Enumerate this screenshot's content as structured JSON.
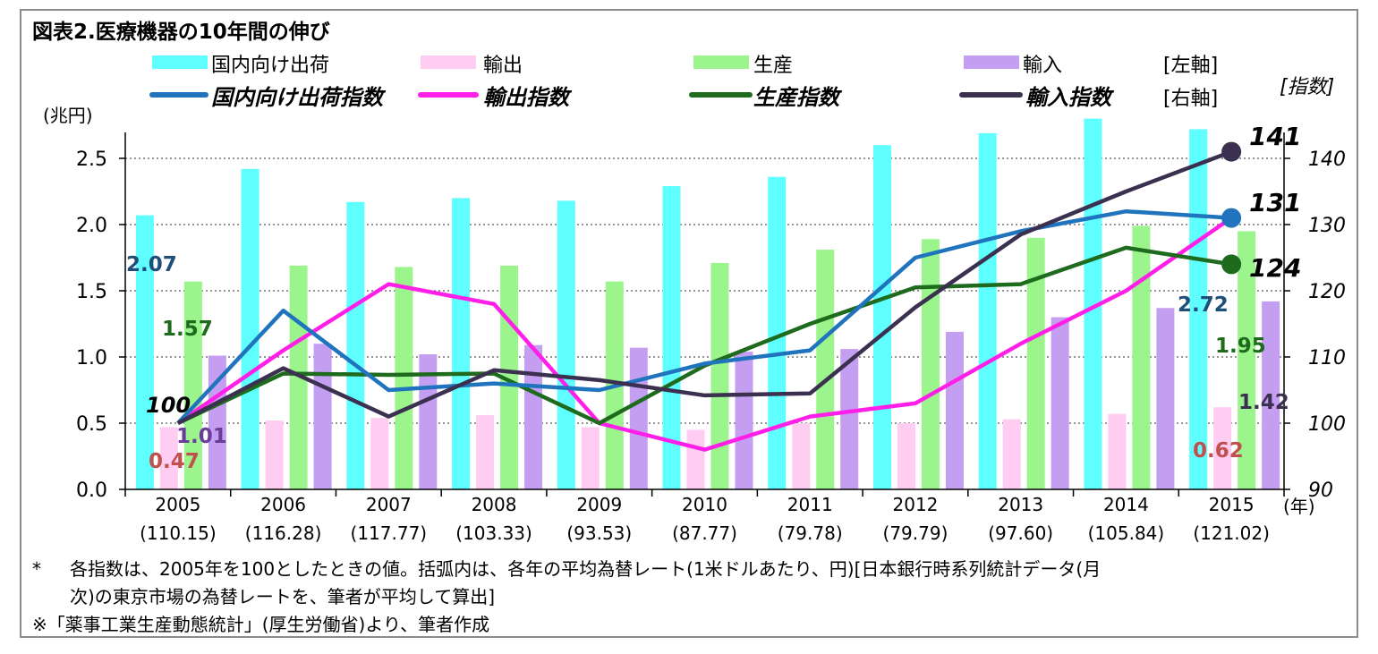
{
  "title": "図表2.医療機器の10年間の伸び",
  "notes": {
    "note1_mark": "*",
    "note1": "各指数は、2005年を100としたときの値。括弧内は、各年の平均為替レート(1米ドルあたり、円)[日本銀行時系列統計データ(月",
    "note2": "次)の東京市場の為替レートを、筆者が平均して算出]",
    "note3": "※「薬事工業生産動態統計」(厚生労働省)より、筆者作成"
  },
  "colors": {
    "domestic_bar": "#5fffff",
    "export_bar": "#ffccf2",
    "production_bar": "#9cf58c",
    "import_bar": "#c49ef0",
    "domestic_line": "#1f74bd",
    "export_line": "#ff1fe8",
    "production_line": "#1e6b1e",
    "import_line": "#3b3050"
  },
  "chart_data": {
    "type": "bar",
    "categories": [
      "2005",
      "2006",
      "2007",
      "2008",
      "2009",
      "2010",
      "2011",
      "2012",
      "2013",
      "2014",
      "2015"
    ],
    "exchange_rates": [
      "(110.15)",
      "(116.28)",
      "(117.77)",
      "(103.33)",
      "(93.53)",
      "(87.77)",
      "(79.78)",
      "(79.79)",
      "(97.60)",
      "(105.84)",
      "(121.02)"
    ],
    "x_unit": "(年)",
    "left_axis": {
      "label": "(兆円)",
      "range": [
        0,
        2.75
      ],
      "ticks": [
        "0.0",
        "0.5",
        "1.0",
        "1.5",
        "2.0",
        "2.5"
      ],
      "tick_values": [
        0,
        0.5,
        1.0,
        1.5,
        2.0,
        2.5
      ]
    },
    "right_axis": {
      "label": "[指数]",
      "range": [
        90,
        145
      ],
      "ticks": [
        "90",
        "100",
        "110",
        "120",
        "130",
        "140"
      ],
      "tick_values": [
        90,
        100,
        110,
        120,
        130,
        140
      ]
    },
    "legend_row1_suffix": "[左軸]",
    "legend_row2_suffix": "[右軸]",
    "grid": "dotted horizontal",
    "bar_series": [
      {
        "name": "国内向け出荷",
        "color_key": "domestic_bar",
        "values": [
          2.07,
          2.42,
          2.17,
          2.2,
          2.18,
          2.29,
          2.36,
          2.6,
          2.69,
          2.8,
          2.72
        ]
      },
      {
        "name": "輸出",
        "color_key": "export_bar",
        "values": [
          0.47,
          0.52,
          0.54,
          0.56,
          0.47,
          0.45,
          0.5,
          0.5,
          0.53,
          0.57,
          0.62
        ]
      },
      {
        "name": "生産",
        "color_key": "production_bar",
        "values": [
          1.57,
          1.69,
          1.68,
          1.69,
          1.57,
          1.71,
          1.81,
          1.89,
          1.9,
          1.99,
          1.95
        ]
      },
      {
        "name": "輸入",
        "color_key": "import_bar",
        "values": [
          1.01,
          1.1,
          1.02,
          1.09,
          1.07,
          1.04,
          1.06,
          1.19,
          1.3,
          1.37,
          1.42
        ]
      }
    ],
    "line_series": [
      {
        "name": "国内向け出荷指数",
        "color_key": "domestic_line",
        "values": [
          100,
          117,
          105,
          106,
          105,
          109,
          111,
          125,
          129,
          132,
          131
        ]
      },
      {
        "name": "輸出指数",
        "color_key": "export_line",
        "values": [
          100,
          111,
          121,
          118,
          100,
          96,
          101,
          103,
          112,
          120,
          131
        ]
      },
      {
        "name": "生産指数",
        "color_key": "production_line",
        "values": [
          100,
          107.5,
          107.3,
          107.5,
          100,
          108.7,
          115,
          120.5,
          121,
          126.5,
          124
        ]
      },
      {
        "name": "輸入指数",
        "color_key": "import_line",
        "values": [
          100,
          108.3,
          101,
          108,
          106.5,
          104.2,
          104.5,
          117.5,
          128.5,
          135,
          141
        ]
      }
    ],
    "data_labels": [
      {
        "text": "2.07",
        "color": "#1f4e79"
      },
      {
        "text": "1.57",
        "color": "#1e6b1e"
      },
      {
        "text": "1.01",
        "color": "#6a3d9a"
      },
      {
        "text": "0.47",
        "color": "#c0504d"
      },
      {
        "text": "100",
        "color": "#000000"
      },
      {
        "text": "2.72",
        "color": "#1f4e79"
      },
      {
        "text": "1.95",
        "color": "#1e6b1e"
      },
      {
        "text": "1.42",
        "color": "#3b3050"
      },
      {
        "text": "0.62",
        "color": "#c0504d"
      },
      {
        "text": "141",
        "color": "#000000"
      },
      {
        "text": "131",
        "color": "#000000"
      },
      {
        "text": "124",
        "color": "#000000"
      }
    ]
  }
}
